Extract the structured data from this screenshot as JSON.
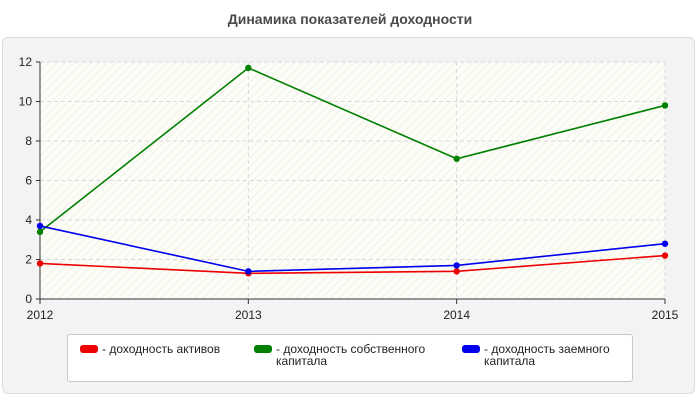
{
  "chart_data": {
    "type": "line",
    "title": "Динамика показателей доходности",
    "xlabel": "",
    "ylabel": "",
    "categories": [
      "2012",
      "2013",
      "2014",
      "2015"
    ],
    "ylim": [
      0,
      12
    ],
    "yticks": [
      "0",
      "2",
      "4",
      "6",
      "8",
      "10",
      "12"
    ],
    "grid": true,
    "legend_position": "bottom",
    "series": [
      {
        "name": "- доходность активов",
        "color": "#ee0000",
        "values": [
          1.8,
          1.3,
          1.4,
          2.2
        ]
      },
      {
        "name": "- доходность собственного капитала",
        "color": "#008000",
        "values": [
          3.4,
          11.7,
          7.1,
          9.8
        ]
      },
      {
        "name": "- доходность заемного капитала",
        "color": "#0000ee",
        "values": [
          3.7,
          1.4,
          1.7,
          2.8
        ]
      }
    ]
  }
}
